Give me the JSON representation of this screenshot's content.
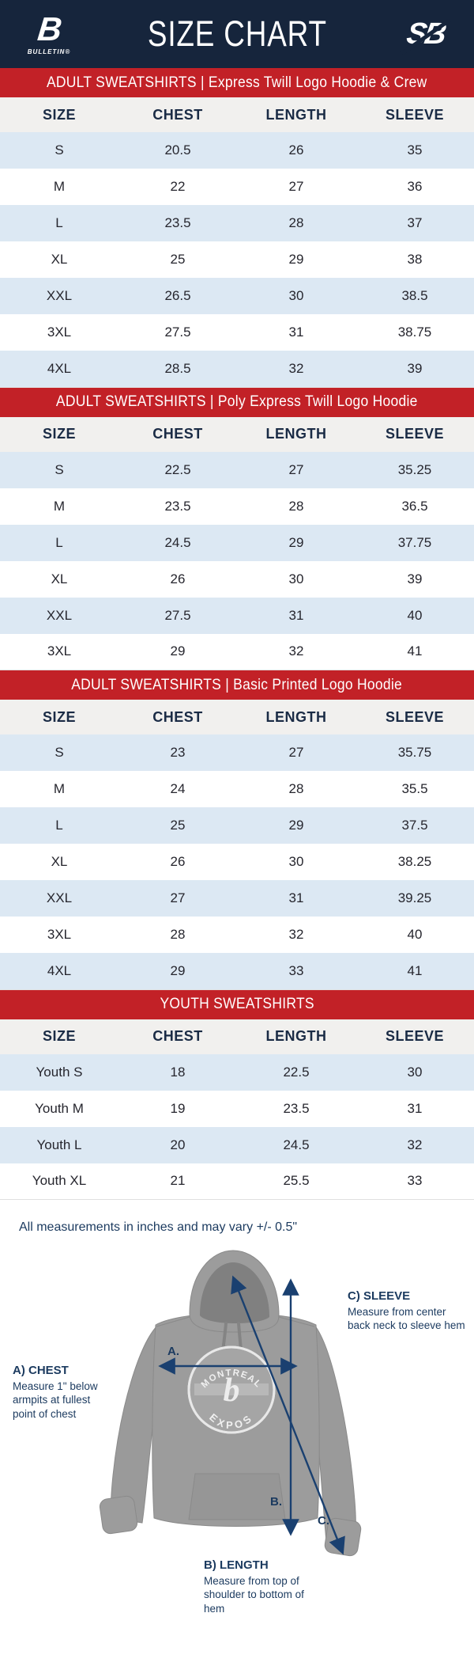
{
  "header": {
    "title": "SIZE CHART",
    "left_logo": {
      "letter": "B",
      "name": "BULLETIN®"
    },
    "right_logo": {
      "letters": "SB"
    }
  },
  "chart_data": [
    {
      "type": "table",
      "title": "ADULT SWEATSHIRTS | Express Twill Logo Hoodie & Crew",
      "columns": [
        "SIZE",
        "CHEST",
        "LENGTH",
        "SLEEVE"
      ],
      "rows": [
        [
          "S",
          "20.5",
          "26",
          "35"
        ],
        [
          "M",
          "22",
          "27",
          "36"
        ],
        [
          "L",
          "23.5",
          "28",
          "37"
        ],
        [
          "XL",
          "25",
          "29",
          "38"
        ],
        [
          "XXL",
          "26.5",
          "30",
          "38.5"
        ],
        [
          "3XL",
          "27.5",
          "31",
          "38.75"
        ],
        [
          "4XL",
          "28.5",
          "32",
          "39"
        ]
      ]
    },
    {
      "type": "table",
      "title": "ADULT SWEATSHIRTS | Poly Express Twill Logo Hoodie",
      "columns": [
        "SIZE",
        "CHEST",
        "LENGTH",
        "SLEEVE"
      ],
      "rows": [
        [
          "S",
          "22.5",
          "27",
          "35.25"
        ],
        [
          "M",
          "23.5",
          "28",
          "36.5"
        ],
        [
          "L",
          "24.5",
          "29",
          "37.75"
        ],
        [
          "XL",
          "26",
          "30",
          "39"
        ],
        [
          "XXL",
          "27.5",
          "31",
          "40"
        ],
        [
          "3XL",
          "29",
          "32",
          "41"
        ]
      ]
    },
    {
      "type": "table",
      "title": "ADULT SWEATSHIRTS | Basic Printed Logo Hoodie",
      "columns": [
        "SIZE",
        "CHEST",
        "LENGTH",
        "SLEEVE"
      ],
      "rows": [
        [
          "S",
          "23",
          "27",
          "35.75"
        ],
        [
          "M",
          "24",
          "28",
          "35.5"
        ],
        [
          "L",
          "25",
          "29",
          "37.5"
        ],
        [
          "XL",
          "26",
          "30",
          "38.25"
        ],
        [
          "XXL",
          "27",
          "31",
          "39.25"
        ],
        [
          "3XL",
          "28",
          "32",
          "40"
        ],
        [
          "4XL",
          "29",
          "33",
          "41"
        ]
      ]
    },
    {
      "type": "table",
      "title": "YOUTH SWEATSHIRTS",
      "columns": [
        "SIZE",
        "CHEST",
        "LENGTH",
        "SLEEVE"
      ],
      "rows": [
        [
          "Youth S",
          "18",
          "22.5",
          "30"
        ],
        [
          "Youth M",
          "19",
          "23.5",
          "31"
        ],
        [
          "Youth L",
          "20",
          "24.5",
          "32"
        ],
        [
          "Youth XL",
          "21",
          "25.5",
          "33"
        ]
      ]
    }
  ],
  "note": "All measurements in inches and may vary +/- 0.5\"",
  "diagram": {
    "markers": {
      "a": "A.",
      "b": "B.",
      "c": "C."
    },
    "chest": {
      "label": "A) CHEST",
      "desc": "Measure 1\" below armpits at fullest point of chest"
    },
    "length": {
      "label": "B) LENGTH",
      "desc": "Measure from top of shoulder to bottom of hem"
    },
    "sleeve": {
      "label": "C) SLEEVE",
      "desc": "Measure from center back neck to sleeve hem"
    },
    "hoodie_logo": {
      "top": "MONTREAL",
      "bottom": "EXPOS"
    }
  },
  "colors": {
    "navy": "#16253C",
    "red": "#C22127",
    "row_blue": "#DCE8F3",
    "header_grey": "#F1F0EE",
    "header_text": "#1A2B45",
    "annotation": "#1B3A5F",
    "arrow": "#1A4070"
  }
}
